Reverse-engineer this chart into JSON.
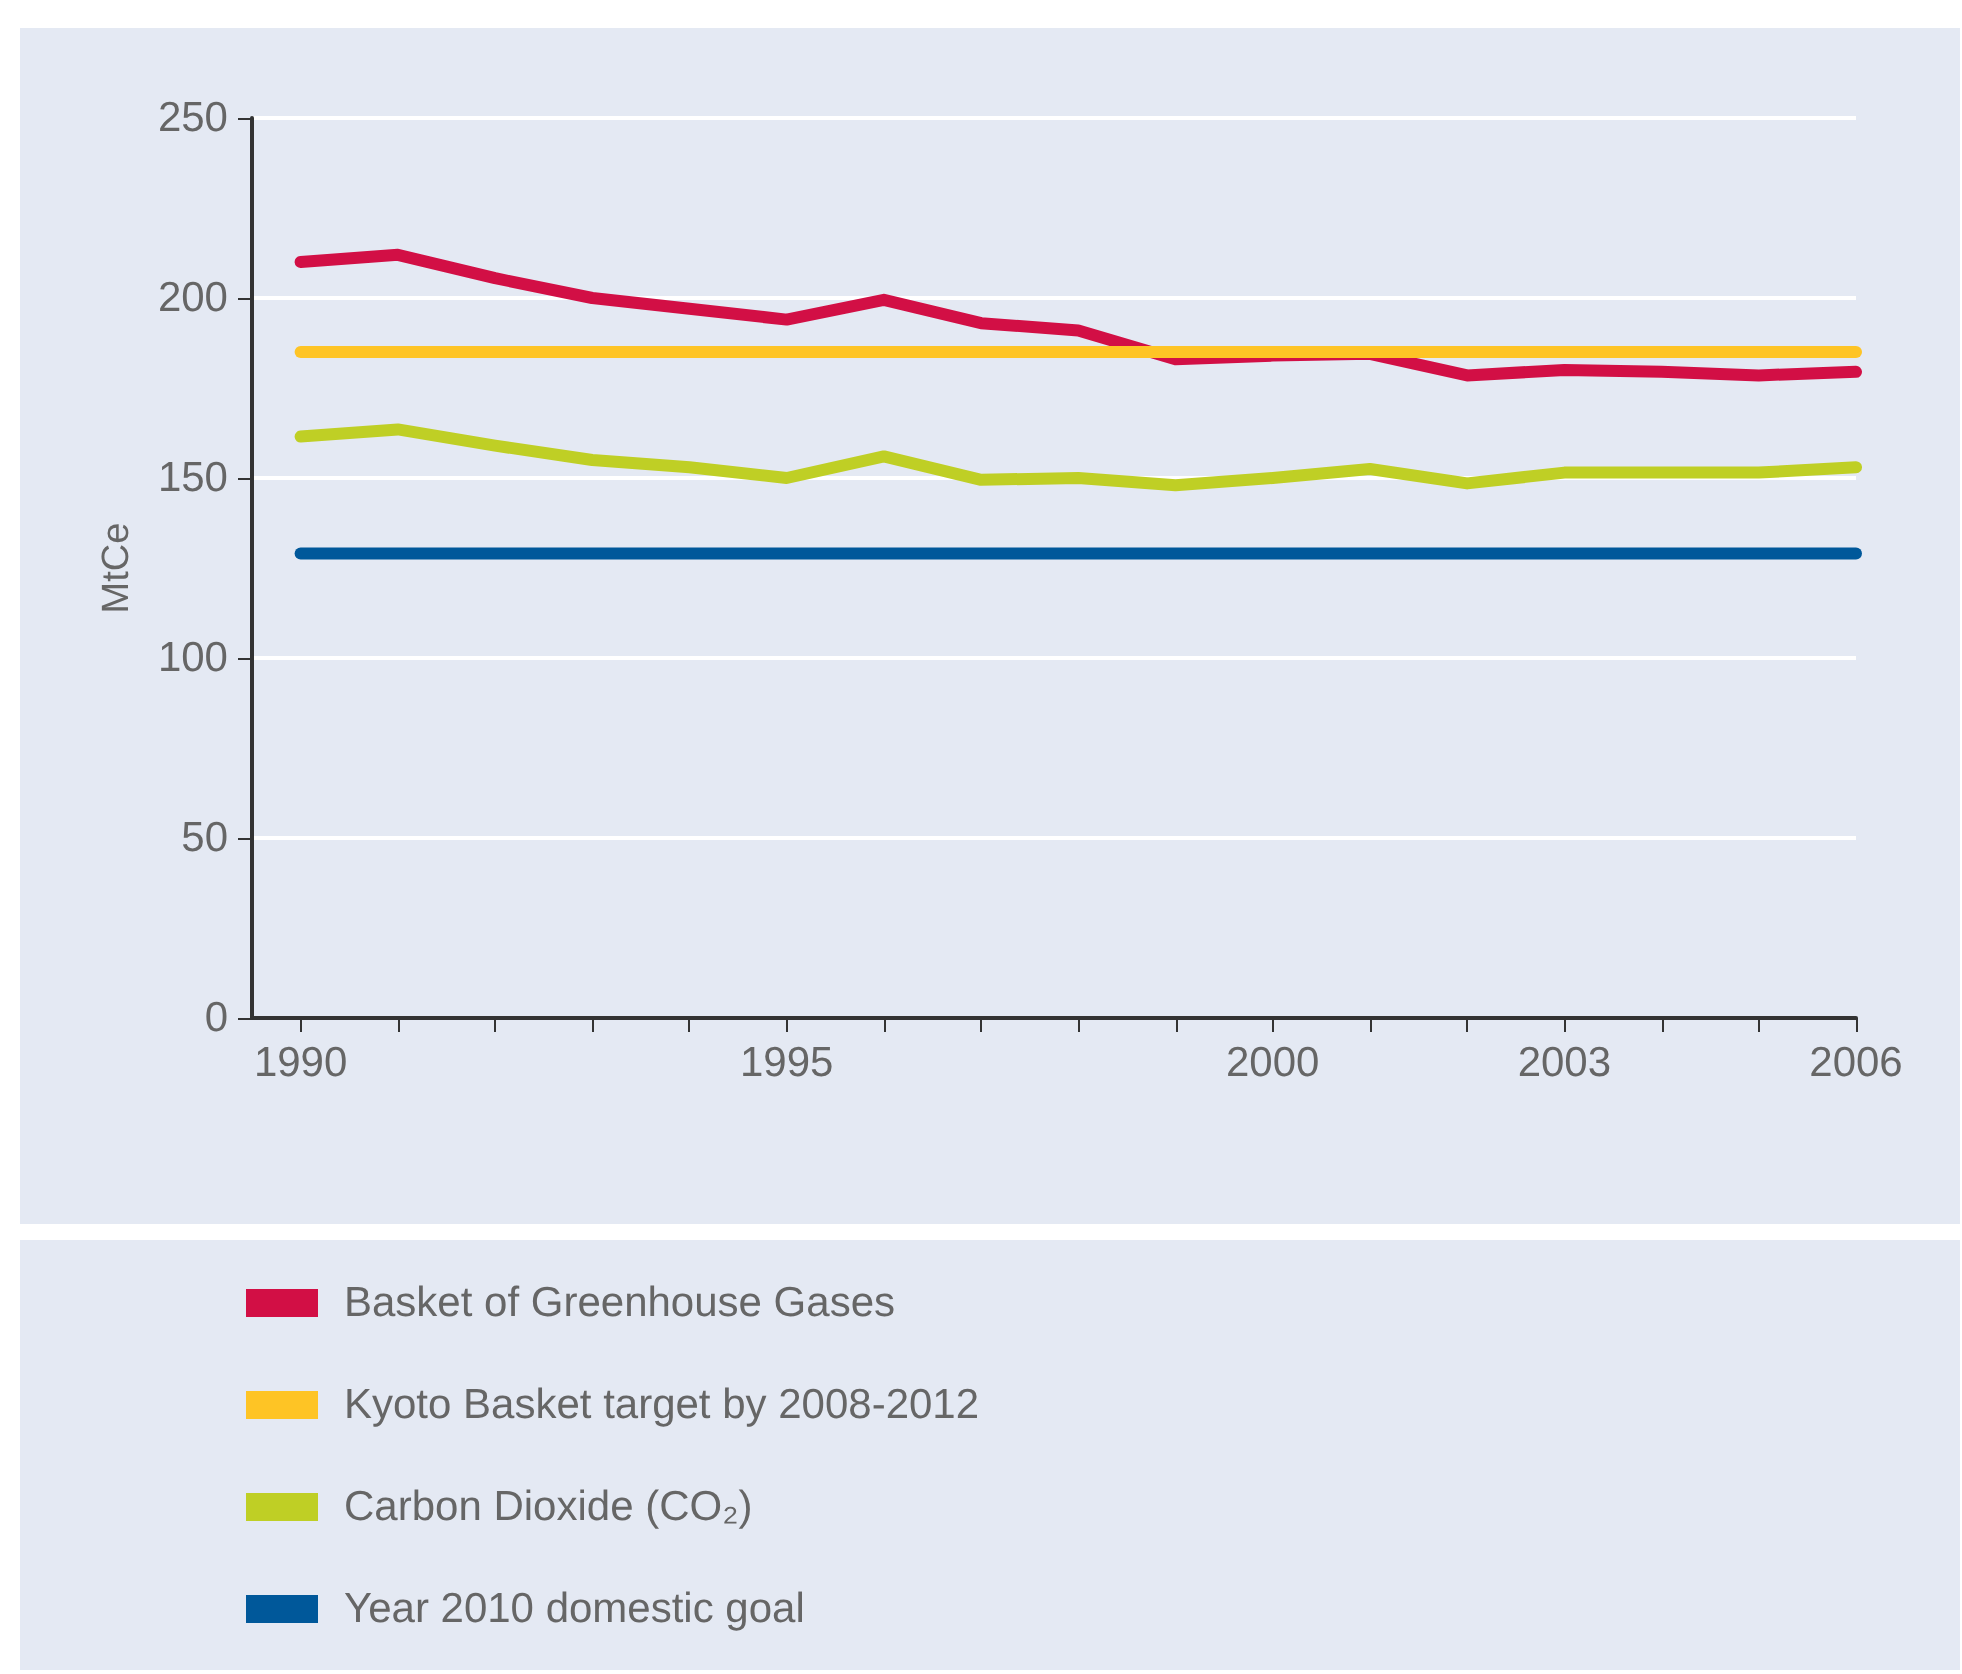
{
  "chart_data": {
    "type": "line",
    "ylabel": "MtCe",
    "x": [
      1990,
      1991,
      1992,
      1993,
      1994,
      1995,
      1996,
      1997,
      1998,
      1999,
      2000,
      2001,
      2002,
      2003,
      2004,
      2005,
      2006
    ],
    "series": [
      {
        "name": "Basket of Greenhouse Gases",
        "color": "#d20f45",
        "values": [
          210,
          212,
          205.5,
          200,
          197,
          194,
          199.5,
          193,
          191,
          183,
          184,
          184.5,
          178.5,
          180,
          179.5,
          178.5,
          179.5
        ]
      },
      {
        "name": "Kyoto Basket target by 2008-2012",
        "color": "#fec425",
        "values": [
          185,
          185,
          185,
          185,
          185,
          185,
          185,
          185,
          185,
          185,
          185,
          185,
          185,
          185,
          185,
          185,
          185
        ]
      },
      {
        "name": "Carbon Dioxide (CO₂)",
        "color": "#bfcf25",
        "values": [
          161.5,
          163.5,
          159,
          155,
          153,
          150,
          156,
          149.5,
          150,
          148,
          150,
          152.5,
          148.5,
          151.5,
          151.5,
          151.5,
          153
        ]
      },
      {
        "name": "Year 2010 domestic goal",
        "color": "#00589a",
        "values": [
          129,
          129,
          129,
          129,
          129,
          129,
          129,
          129,
          129,
          129,
          129,
          129,
          129,
          129,
          129,
          129,
          129
        ]
      }
    ],
    "xlim": [
      1989.5,
      2006
    ],
    "xticks": [
      1990,
      {
        "value": 1991,
        "label": null
      },
      {
        "value": 1992,
        "label": null
      },
      {
        "value": 1993,
        "label": null
      },
      {
        "value": 1994,
        "label": null
      },
      1995,
      {
        "value": 1996,
        "label": null
      },
      {
        "value": 1997,
        "label": null
      },
      {
        "value": 1998,
        "label": null
      },
      {
        "value": 1999,
        "label": null
      },
      2000,
      {
        "value": 2001,
        "label": null
      },
      {
        "value": 2002,
        "label": null
      },
      2003,
      {
        "value": 2004,
        "label": null
      },
      {
        "value": 2005,
        "label": null
      },
      2006
    ],
    "ylim": [
      0,
      250
    ],
    "yticks": [
      0,
      50,
      100,
      150,
      200,
      250
    ],
    "grid": "y",
    "legend": "bottom",
    "marker": "none",
    "line_style": "solid"
  }
}
